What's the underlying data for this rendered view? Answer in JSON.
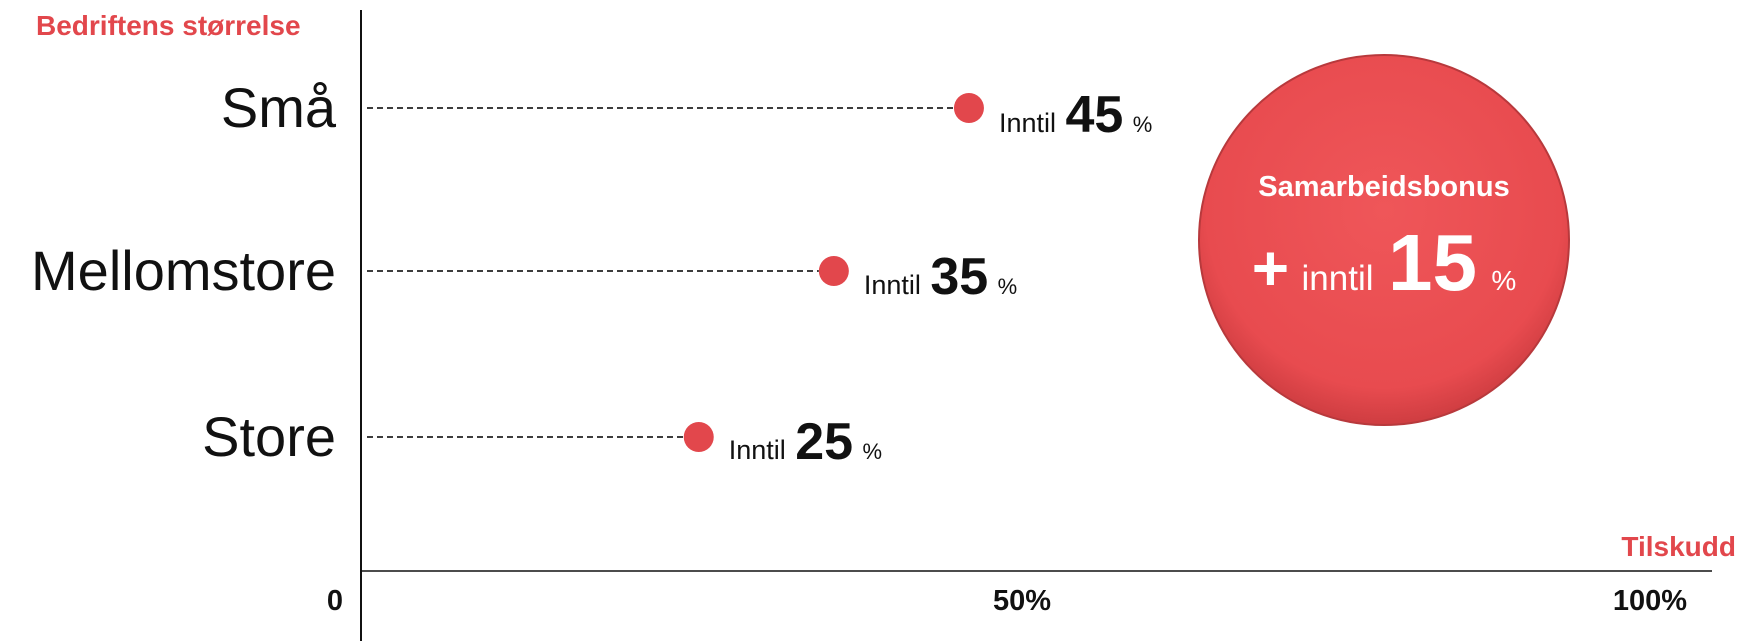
{
  "chart_data": {
    "type": "scatter",
    "ylabel": "Bedriftens størrelse",
    "xlabel": "Tilskudd",
    "xlim": [
      0,
      100
    ],
    "x_ticks": [
      "0",
      "50%",
      "100%"
    ],
    "categories": [
      "Små",
      "Mellomstore",
      "Store"
    ],
    "values": [
      45,
      35,
      25
    ],
    "point_label_prefix": "Inntil",
    "point_label_unit": "%",
    "grid": false,
    "bonus": {
      "title": "Samarbeidsbonus",
      "plus": "+",
      "prefix": "inntil",
      "value": "15",
      "unit": "%"
    }
  },
  "colors": {
    "accent": "#e2474c",
    "bonus_fill": "#e84b4f",
    "axis": "#111111",
    "dashed_line": "#222222"
  }
}
